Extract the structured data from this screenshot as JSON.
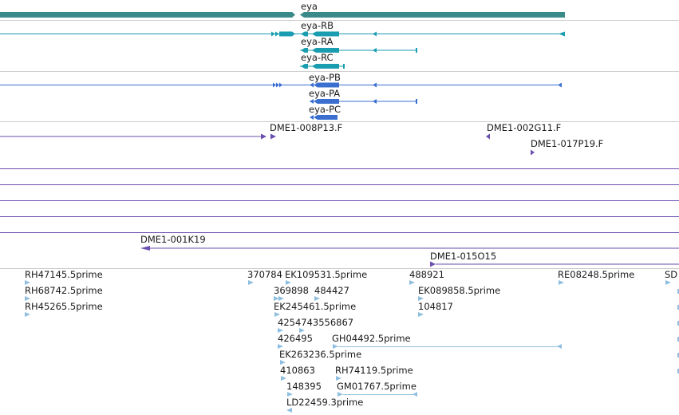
{
  "colors": {
    "gene": "#3a8a8a",
    "transcript": "#1a9db0",
    "protein": "#3a6fcf",
    "clone": "#6a4fb0",
    "est": "#8fbfe0",
    "divider": "#cccccc",
    "text": "#1a1a1a"
  },
  "gene": {
    "label": "eya",
    "transcripts": [
      "eya-RB",
      "eya-RA",
      "eya-RC"
    ],
    "proteins": [
      "eya-PB",
      "eya-PA",
      "eya-PC"
    ]
  },
  "clones": {
    "labels": [
      "DME1-008P13.F",
      "DME1-002G11.F",
      "DME1-017P19.F",
      "DME1-001K19",
      "DME1-015O15"
    ]
  },
  "ests": {
    "labels": [
      "RH47145.5prime",
      "RH68742.5prime",
      "RH45265.5prime",
      "370784",
      "EK109531.5prime",
      "369898",
      "484427",
      "EK245461.5prime",
      "4254743556867",
      "426495",
      "GH04492.5prime",
      "EK263236.5prime",
      "410863",
      "RH74119.5prime",
      "148395",
      "GM01767.5prime",
      "LD22459.3prime",
      "488921",
      "EK089858.5prime",
      "104817",
      "RE08248.5prime",
      "SD"
    ]
  }
}
